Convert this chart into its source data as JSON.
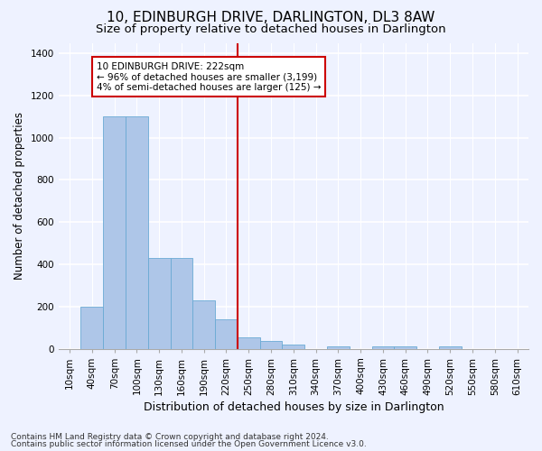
{
  "title": "10, EDINBURGH DRIVE, DARLINGTON, DL3 8AW",
  "subtitle": "Size of property relative to detached houses in Darlington",
  "xlabel": "Distribution of detached houses by size in Darlington",
  "ylabel": "Number of detached properties",
  "footnote1": "Contains HM Land Registry data © Crown copyright and database right 2024.",
  "footnote2": "Contains public sector information licensed under the Open Government Licence v3.0.",
  "bar_labels": [
    "10sqm",
    "40sqm",
    "70sqm",
    "100sqm",
    "130sqm",
    "160sqm",
    "190sqm",
    "220sqm",
    "250sqm",
    "280sqm",
    "310sqm",
    "340sqm",
    "370sqm",
    "400sqm",
    "430sqm",
    "460sqm",
    "490sqm",
    "520sqm",
    "550sqm",
    "580sqm",
    "610sqm"
  ],
  "bar_values": [
    0,
    200,
    1100,
    1100,
    430,
    430,
    230,
    140,
    55,
    35,
    20,
    0,
    10,
    0,
    12,
    10,
    0,
    12,
    0,
    0,
    0
  ],
  "bar_color": "#aec6e8",
  "bar_edgecolor": "#6aaad4",
  "vline_x": 7.5,
  "vline_color": "#cc0000",
  "annotation_text": "10 EDINBURGH DRIVE: 222sqm\n← 96% of detached houses are smaller (3,199)\n4% of semi-detached houses are larger (125) →",
  "annotation_box_color": "#cc0000",
  "ylim": [
    0,
    1450
  ],
  "yticks": [
    0,
    200,
    400,
    600,
    800,
    1000,
    1200,
    1400
  ],
  "background_color": "#eef2ff",
  "plot_background": "#eef2ff",
  "grid_color": "#ffffff",
  "title_fontsize": 11,
  "subtitle_fontsize": 9.5,
  "xlabel_fontsize": 9,
  "ylabel_fontsize": 8.5,
  "tick_fontsize": 7.5,
  "annotation_fontsize": 7.5,
  "footnote_fontsize": 6.5
}
